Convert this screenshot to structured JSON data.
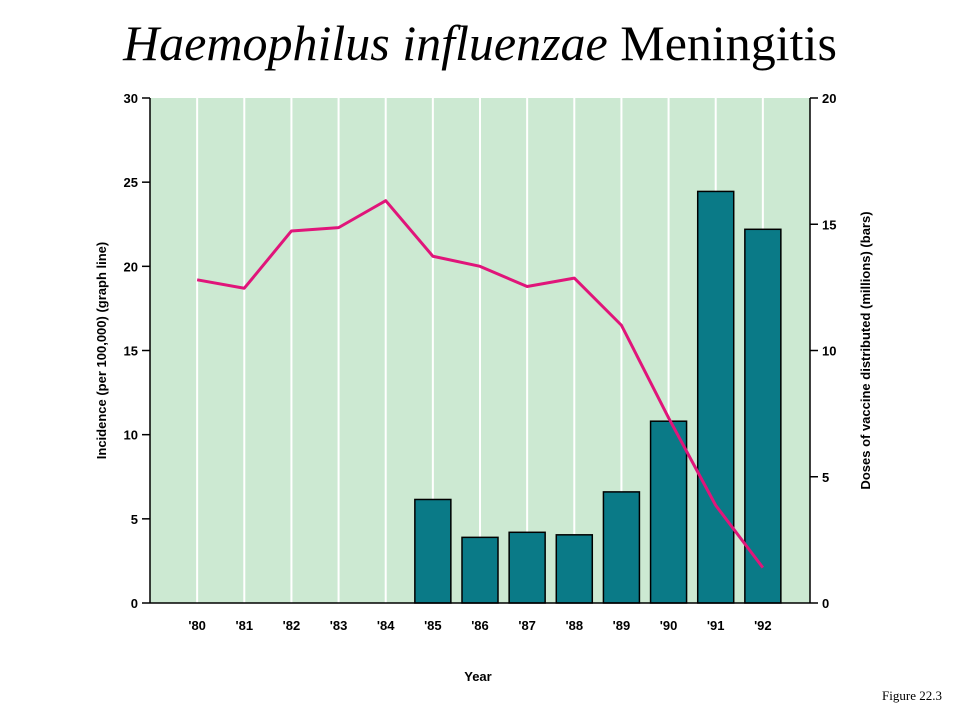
{
  "title": {
    "italic": "Haemophilus influenzae",
    "plain": "Meningitis"
  },
  "figure_caption": "Figure 22.3",
  "colors": {
    "plot_bg": "#cce9d2",
    "grid": "#ffffff",
    "bar": "#0a7a87",
    "line": "#e0157a"
  },
  "chart_data": {
    "type": "bar+line",
    "title": "Haemophilus influenzae Meningitis",
    "xlabel": "Year",
    "ylabel_left": "Incidence (per 100,000) (graph line)",
    "ylabel_right": "Doses of vaccine distributed (millions) (bars)",
    "categories": [
      "'80",
      "'81",
      "'82",
      "'83",
      "'84",
      "'85",
      "'86",
      "'87",
      "'88",
      "'89",
      "'90",
      "'91",
      "'92"
    ],
    "left_axis": {
      "min": 0,
      "max": 30,
      "ticks": [
        0,
        5,
        10,
        15,
        20,
        25,
        30
      ]
    },
    "right_axis": {
      "min": 0,
      "max": 20,
      "ticks": [
        0,
        5,
        10,
        15,
        20
      ]
    },
    "series": [
      {
        "type": "line",
        "axis": "left",
        "values": [
          19.2,
          18.7,
          22.1,
          22.3,
          23.9,
          20.6,
          20.0,
          18.8,
          19.3,
          16.5,
          11.0,
          5.8,
          2.1
        ]
      },
      {
        "type": "bar",
        "axis": "right",
        "values": [
          null,
          null,
          null,
          null,
          null,
          4.1,
          2.6,
          2.8,
          2.7,
          4.4,
          7.2,
          16.3,
          14.8
        ]
      }
    ],
    "grid": "vertical"
  }
}
